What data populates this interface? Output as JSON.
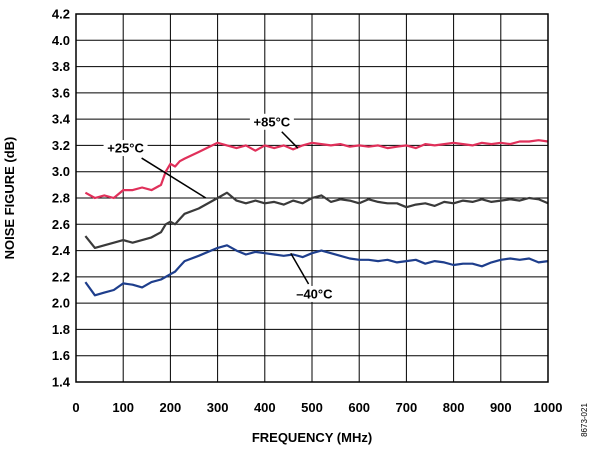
{
  "chart_data": {
    "type": "line",
    "xlabel": "FREQUENCY (MHz)",
    "ylabel": "NOISE FIGURE (dB)",
    "xlim": [
      0,
      1000
    ],
    "ylim": [
      1.4,
      4.2
    ],
    "x_ticks": [
      "0",
      "100",
      "200",
      "300",
      "400",
      "500",
      "600",
      "700",
      "800",
      "900",
      "1000"
    ],
    "y_ticks": [
      "1.4",
      "1.6",
      "1.8",
      "2.0",
      "2.2",
      "2.4",
      "2.6",
      "2.8",
      "3.0",
      "3.2",
      "3.4",
      "3.6",
      "3.8",
      "4.0",
      "4.2"
    ],
    "grid": true,
    "figure_id": "8673-021",
    "series": [
      {
        "name": "+85°C",
        "color": "#e0305a",
        "x": [
          20,
          40,
          60,
          80,
          100,
          120,
          140,
          160,
          180,
          190,
          200,
          210,
          220,
          230,
          260,
          300,
          320,
          340,
          360,
          380,
          400,
          420,
          440,
          460,
          480,
          500,
          520,
          540,
          560,
          580,
          600,
          620,
          640,
          660,
          680,
          700,
          720,
          740,
          760,
          780,
          800,
          820,
          840,
          860,
          880,
          900,
          920,
          940,
          960,
          980,
          1000
        ],
        "y": [
          2.84,
          2.8,
          2.82,
          2.8,
          2.86,
          2.86,
          2.88,
          2.86,
          2.9,
          3.0,
          3.06,
          3.04,
          3.08,
          3.1,
          3.15,
          3.22,
          3.2,
          3.18,
          3.2,
          3.16,
          3.2,
          3.18,
          3.2,
          3.17,
          3.2,
          3.22,
          3.21,
          3.2,
          3.21,
          3.19,
          3.2,
          3.19,
          3.2,
          3.18,
          3.19,
          3.2,
          3.18,
          3.21,
          3.2,
          3.21,
          3.22,
          3.21,
          3.2,
          3.22,
          3.21,
          3.22,
          3.21,
          3.23,
          3.23,
          3.24,
          3.23
        ]
      },
      {
        "name": "+25°C",
        "color": "#3a3a3a",
        "x": [
          20,
          40,
          60,
          80,
          100,
          120,
          140,
          160,
          180,
          190,
          200,
          210,
          220,
          230,
          260,
          300,
          320,
          340,
          360,
          380,
          400,
          420,
          440,
          460,
          480,
          500,
          520,
          540,
          560,
          580,
          600,
          620,
          640,
          660,
          680,
          700,
          720,
          740,
          760,
          780,
          800,
          820,
          840,
          860,
          880,
          900,
          920,
          940,
          960,
          980,
          1000
        ],
        "y": [
          2.51,
          2.42,
          2.44,
          2.46,
          2.48,
          2.46,
          2.48,
          2.5,
          2.54,
          2.6,
          2.62,
          2.6,
          2.64,
          2.68,
          2.72,
          2.8,
          2.84,
          2.78,
          2.76,
          2.78,
          2.76,
          2.77,
          2.75,
          2.78,
          2.76,
          2.8,
          2.82,
          2.77,
          2.79,
          2.78,
          2.76,
          2.79,
          2.77,
          2.76,
          2.76,
          2.73,
          2.75,
          2.76,
          2.74,
          2.77,
          2.76,
          2.78,
          2.77,
          2.79,
          2.77,
          2.78,
          2.79,
          2.78,
          2.8,
          2.79,
          2.76
        ]
      },
      {
        "name": "–40°C",
        "color": "#1e3e8c",
        "x": [
          20,
          40,
          60,
          80,
          100,
          120,
          140,
          160,
          180,
          190,
          200,
          210,
          220,
          230,
          260,
          300,
          320,
          340,
          360,
          380,
          400,
          420,
          440,
          460,
          480,
          500,
          520,
          540,
          560,
          580,
          600,
          620,
          640,
          660,
          680,
          700,
          720,
          740,
          760,
          780,
          800,
          820,
          840,
          860,
          880,
          900,
          920,
          940,
          960,
          980,
          1000
        ],
        "y": [
          2.16,
          2.06,
          2.08,
          2.1,
          2.15,
          2.14,
          2.12,
          2.16,
          2.18,
          2.2,
          2.22,
          2.24,
          2.28,
          2.32,
          2.36,
          2.42,
          2.44,
          2.4,
          2.37,
          2.39,
          2.38,
          2.37,
          2.36,
          2.37,
          2.35,
          2.38,
          2.4,
          2.38,
          2.36,
          2.34,
          2.33,
          2.33,
          2.32,
          2.33,
          2.31,
          2.32,
          2.33,
          2.3,
          2.32,
          2.31,
          2.29,
          2.3,
          2.3,
          2.28,
          2.31,
          2.33,
          2.34,
          2.33,
          2.34,
          2.31,
          2.32
        ]
      }
    ],
    "annotations": [
      {
        "text": "+85°C",
        "series": 0,
        "target_x": 470,
        "target_y": 3.18,
        "label_x": 415,
        "label_y": 3.38
      },
      {
        "text": "+25°C",
        "series": 1,
        "target_x": 275,
        "target_y": 2.8,
        "label_x": 105,
        "label_y": 3.18
      },
      {
        "text": "–40°C",
        "series": 2,
        "target_x": 455,
        "target_y": 2.38,
        "label_x": 505,
        "label_y": 2.07
      }
    ]
  }
}
